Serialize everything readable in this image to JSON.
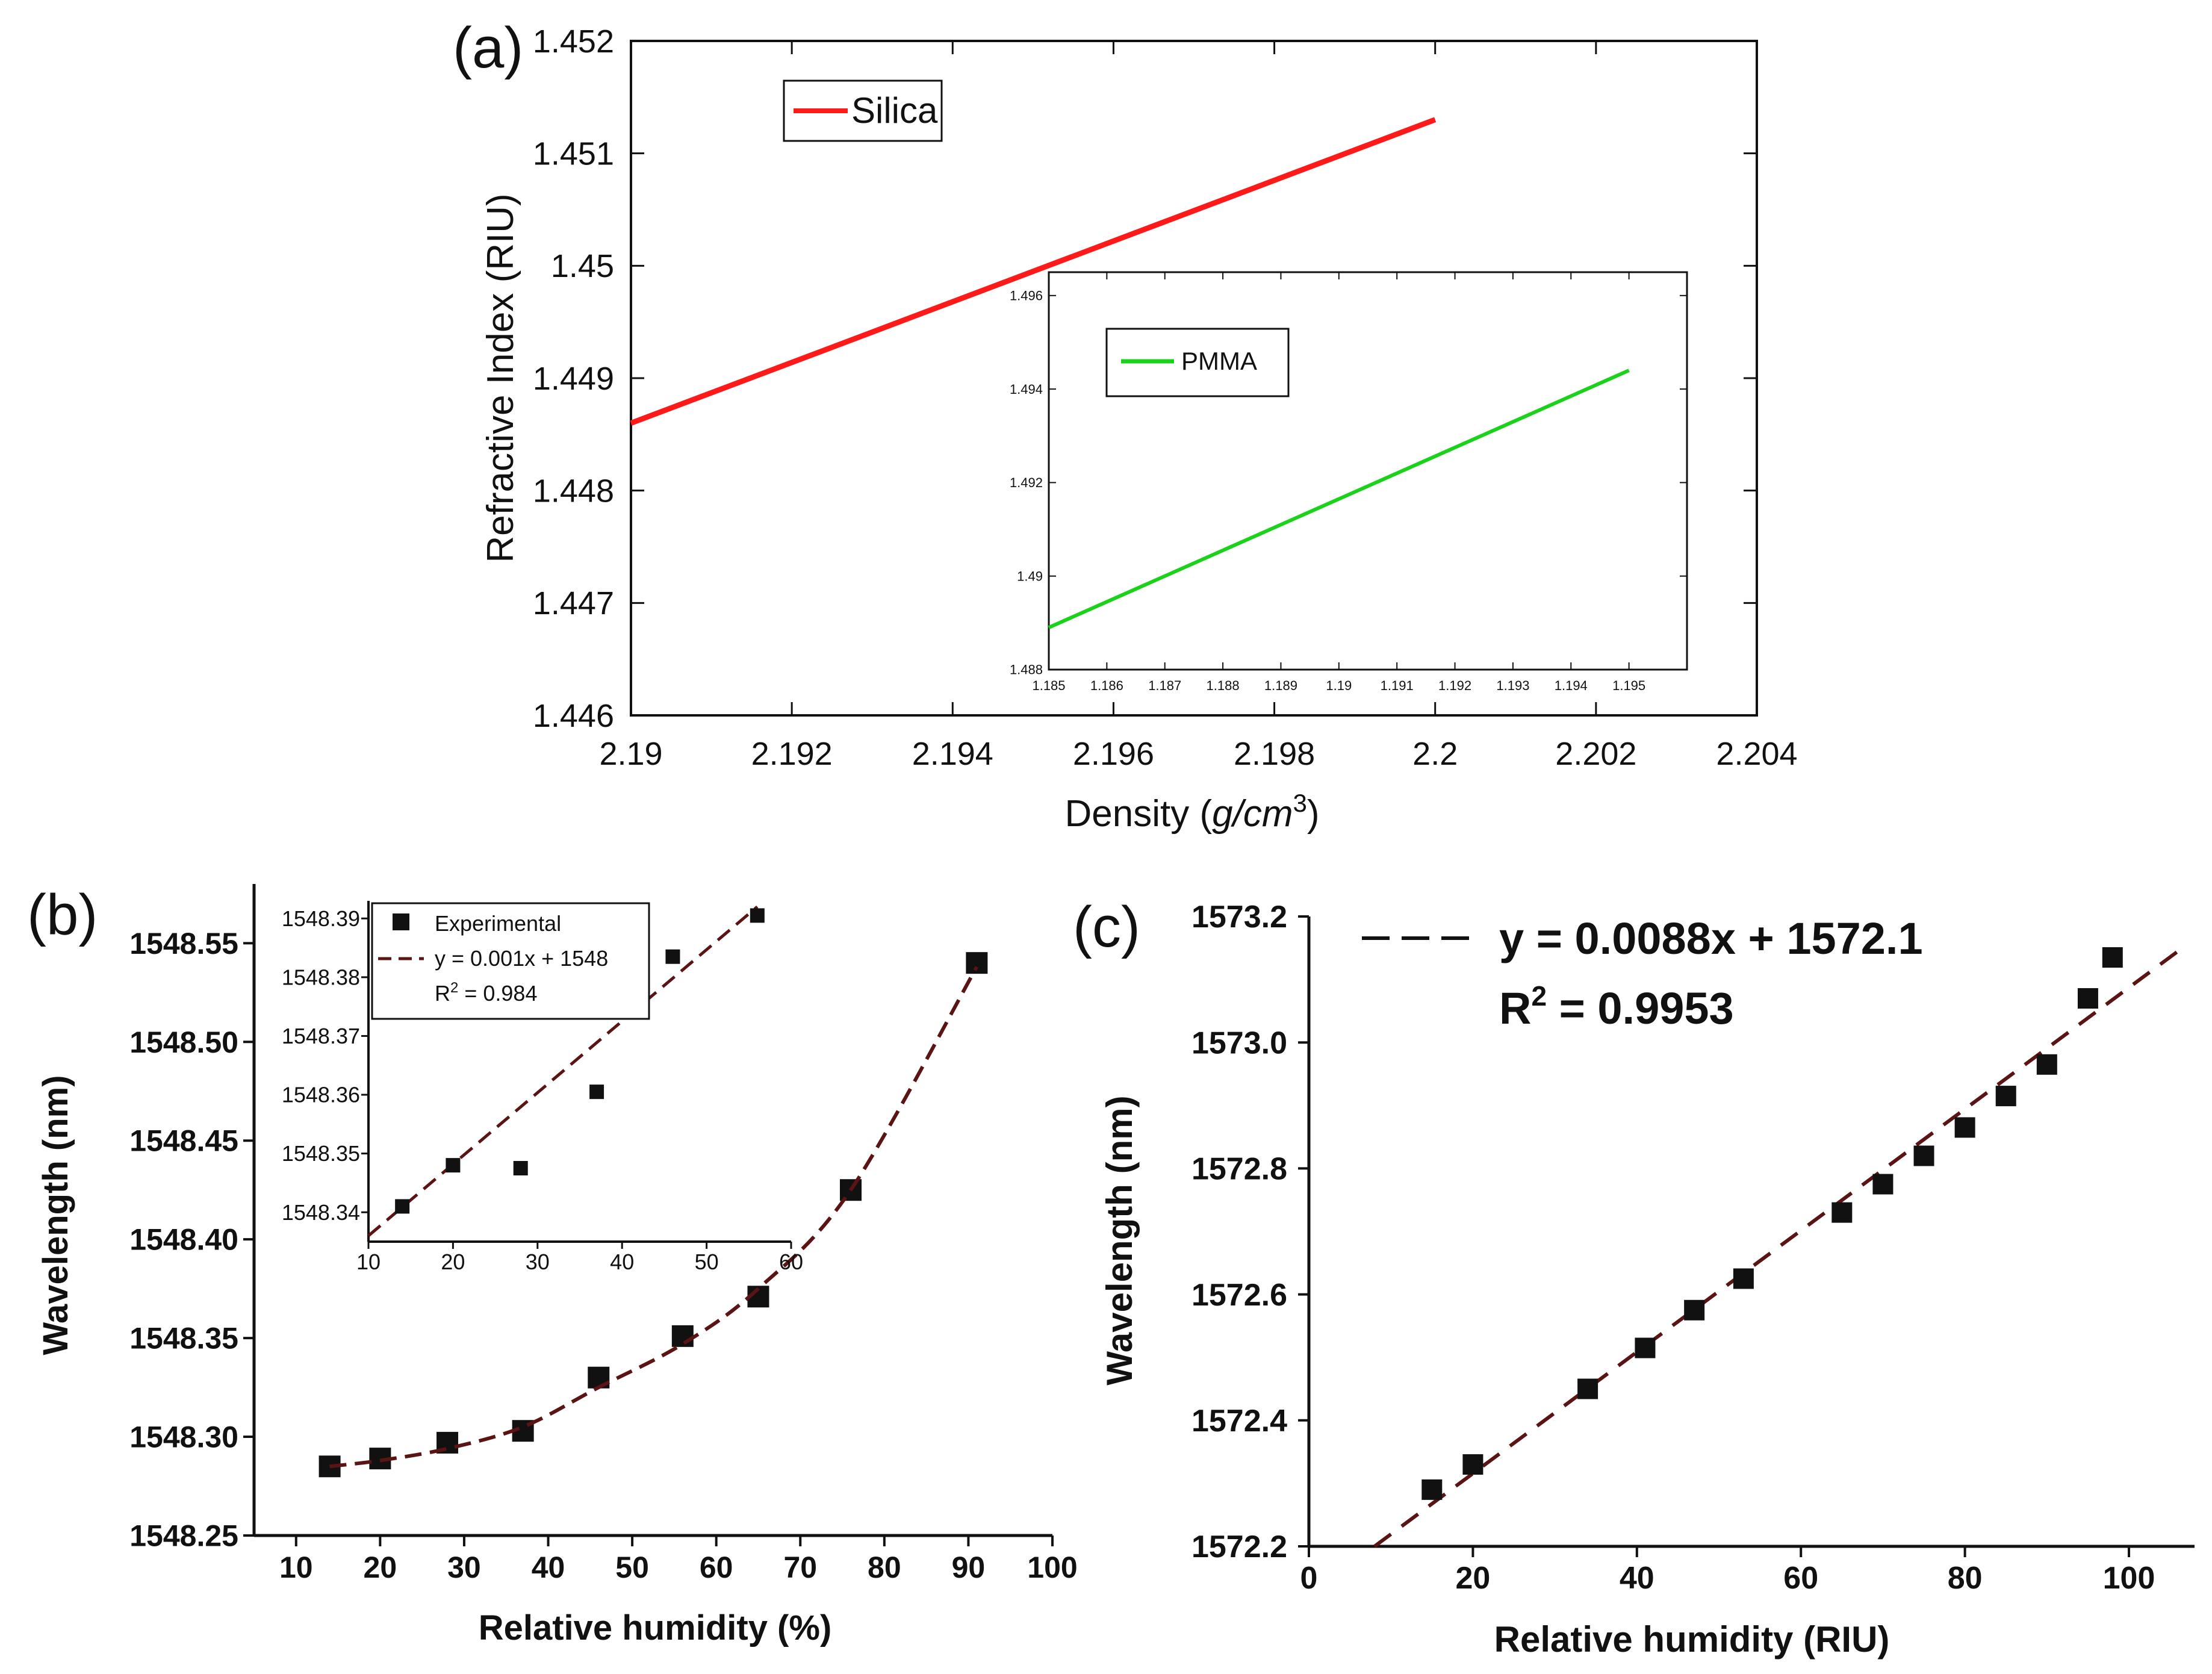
{
  "colors": {
    "silica": "#ff1a1a",
    "pmma": "#19d219",
    "fit_line": "#5a1414",
    "marker": "#111111",
    "axis": "#111111"
  },
  "chart_data": [
    {
      "panel_label": "(a)",
      "type": "line",
      "xlabel": "Density (",
      "xlabel_unit": "g/cm",
      "xlabel_sup": "3",
      "xlabel_close": ")",
      "ylabel": "Refractive Index (RIU)",
      "xlim": [
        2.19,
        2.204
      ],
      "ylim": [
        1.446,
        1.452
      ],
      "x_ticks": [
        "2.19",
        "2.192",
        "2.194",
        "2.196",
        "2.198",
        "2.2",
        "2.202",
        "2.204"
      ],
      "y_ticks": [
        "1.446",
        "1.447",
        "1.448",
        "1.449",
        "1.45",
        "1.451",
        "1.452"
      ],
      "series": [
        {
          "name": "Silica",
          "x": [
            2.19,
            2.2
          ],
          "y": [
            1.4486,
            1.4513
          ]
        }
      ],
      "legend": [
        "Silica"
      ],
      "legend_position": "top-left",
      "inset": {
        "type": "line",
        "xlim": [
          1.185,
          1.196
        ],
        "ylim": [
          1.488,
          1.4965
        ],
        "x_ticks": [
          "1.185",
          "1.186",
          "1.187",
          "1.188",
          "1.189",
          "1.19",
          "1.191",
          "1.192",
          "1.193",
          "1.194",
          "1.195"
        ],
        "y_ticks": [
          "1.488",
          "1.49",
          "1.492",
          "1.494",
          "1.496"
        ],
        "series": [
          {
            "name": "PMMA",
            "x": [
              1.185,
              1.195
            ],
            "y": [
              1.4889,
              1.4944
            ]
          }
        ],
        "legend": [
          "PMMA"
        ]
      }
    },
    {
      "panel_label": "(b)",
      "type": "scatter",
      "xlabel": "Relative humidity (%)",
      "ylabel": "Wavelength (nm)",
      "xlim": [
        5,
        100
      ],
      "ylim": [
        1548.25,
        1548.58
      ],
      "x_ticks": [
        "10",
        "20",
        "30",
        "40",
        "50",
        "60",
        "70",
        "80",
        "90",
        "100"
      ],
      "y_ticks": [
        "1548.25",
        "1548.30",
        "1548.35",
        "1548.40",
        "1548.45",
        "1548.50",
        "1548.55"
      ],
      "series": [
        {
          "name": "Experimental",
          "x": [
            14,
            20,
            28,
            37,
            46,
            56,
            65,
            76,
            91
          ],
          "y": [
            1548.285,
            1548.289,
            1548.297,
            1548.303,
            1548.33,
            1548.351,
            1548.371,
            1548.425,
            1548.54
          ]
        },
        {
          "name": "Fit",
          "x": [
            14,
            20,
            28,
            37,
            46,
            56,
            65,
            76,
            91
          ],
          "y": [
            1548.285,
            1548.288,
            1548.294,
            1548.305,
            1548.325,
            1548.347,
            1548.375,
            1548.425,
            1548.538
          ]
        }
      ],
      "inset": {
        "type": "scatter",
        "xlim": [
          10,
          60
        ],
        "ylim": [
          1548.335,
          1548.393
        ],
        "x_ticks": [
          "10",
          "20",
          "30",
          "40",
          "50",
          "60"
        ],
        "y_ticks": [
          "1548.34",
          "1548.35",
          "1548.36",
          "1548.37",
          "1548.38",
          "1548.39"
        ],
        "series": [
          {
            "name": "Experimental",
            "x": [
              14,
              20,
              28,
              37,
              46,
              56
            ],
            "y": [
              1548.341,
              1548.348,
              1548.3475,
              1548.3605,
              1548.3835,
              1548.3905
            ]
          },
          {
            "name": "Fit",
            "x": [
              10,
              56
            ],
            "y": [
              1548.336,
              1548.392
            ]
          }
        ],
        "legend": [
          "Experimental",
          "y = 0.001x + 1548",
          "R",
          "2",
          " = 0.984"
        ]
      }
    },
    {
      "panel_label": "(c)",
      "type": "scatter",
      "xlabel": "Relative humidity (RIU)",
      "ylabel": "Wavelength (nm)",
      "xlim": [
        0,
        108
      ],
      "ylim": [
        1572.2,
        1573.2
      ],
      "x_ticks": [
        "0",
        "20",
        "40",
        "60",
        "80",
        "100"
      ],
      "y_ticks": [
        "1572.2",
        "1572.4",
        "1572.6",
        "1572.8",
        "1573.0",
        "1573.2"
      ],
      "series": [
        {
          "name": "Experimental",
          "x": [
            15,
            20,
            34,
            41,
            47,
            53,
            65,
            70,
            75,
            80,
            85,
            90,
            95,
            98
          ],
          "y": [
            1572.29,
            1572.33,
            1572.45,
            1572.515,
            1572.575,
            1572.625,
            1572.73,
            1572.775,
            1572.82,
            1572.865,
            1572.915,
            1572.965,
            1573.07,
            1573.135
          ]
        },
        {
          "name": "Fit",
          "x": [
            8,
            106
          ],
          "y": [
            1572.2,
            1573.145
          ]
        }
      ],
      "annotation": [
        "y = 0.0088x + 1572.1",
        "R",
        "2",
        " = 0.9953"
      ]
    }
  ]
}
